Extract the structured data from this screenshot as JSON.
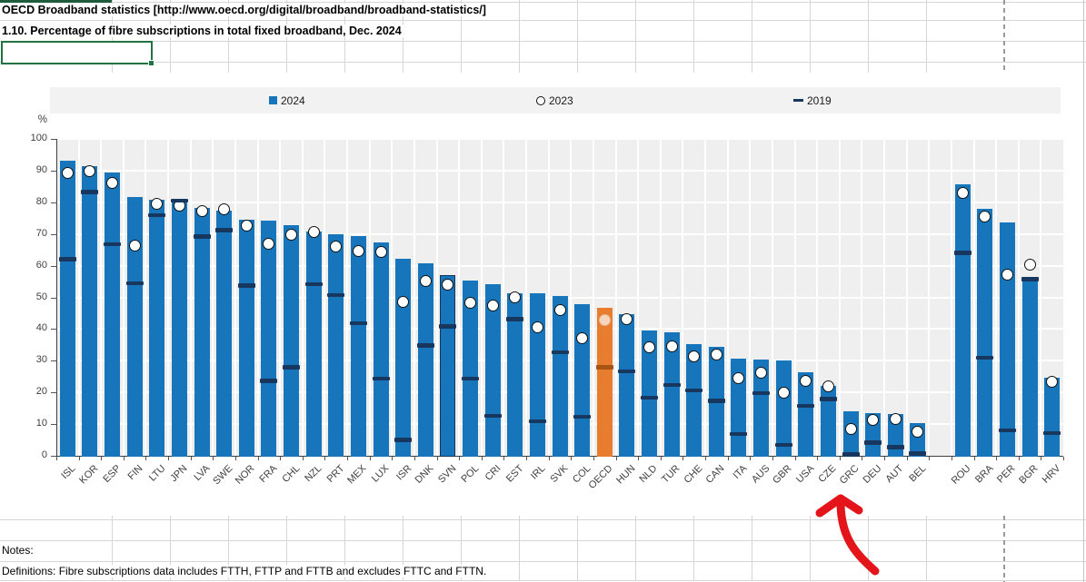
{
  "sheet": {
    "title": "OECD Broadband statistics [http://www.oecd.org/digital/broadband/broadband-statistics/]",
    "subtitle": "1.10. Percentage of fibre subscriptions in total fixed broadband, Dec. 2024",
    "notes_label": "Notes:",
    "definitions": "Definitions: Fibre subscriptions data includes FTTH, FTTP and FTTB and excludes FTTC and FTTN."
  },
  "legend": {
    "items": [
      {
        "label": "2024",
        "marker": "blue-square"
      },
      {
        "label": "2023",
        "marker": "white-circle"
      },
      {
        "label": "2019",
        "marker": "navy-dash"
      }
    ]
  },
  "colors": {
    "bar_blue": "#1776bb",
    "bar_orange": "#e87d2f",
    "dash_navy": "#17375e",
    "dash_orange_dark": "#a85415",
    "circle_fill": "#ffffff",
    "circle_stroke": "#111111",
    "plot_bg": "#efefef",
    "legend_bg": "#f2f2f2",
    "selection_green": "#217346",
    "arrow_red": "#e3151b",
    "gridline_gray": "#d6d6d6",
    "axis_gray": "#3f3f3f"
  },
  "chart_data": {
    "type": "bar",
    "title": "1.10. Percentage of fibre subscriptions in total fixed broadband, Dec. 2024",
    "unit_label": "%",
    "ylim": [
      0,
      100
    ],
    "yticks": [
      100,
      90,
      80,
      70,
      60,
      50,
      40,
      30,
      20,
      10,
      0
    ],
    "legend_position": "top",
    "grid": true,
    "categories": [
      "ISL",
      "KOR",
      "ESP",
      "FIN",
      "LTU",
      "JPN",
      "LVA",
      "SWE",
      "NOR",
      "FRA",
      "CHL",
      "NZL",
      "PRT",
      "MEX",
      "LUX",
      "ISR",
      "DNK",
      "SVN",
      "POL",
      "CRI",
      "EST",
      "IRL",
      "SVK",
      "COL",
      "OECD",
      "HUN",
      "NLD",
      "TUR",
      "CHE",
      "CAN",
      "ITA",
      "AUS",
      "GBR",
      "USA",
      "CZE",
      "GRC",
      "DEU",
      "AUT",
      "BEL",
      "ROU",
      "BRA",
      "PER",
      "BGR",
      "HRV"
    ],
    "series": [
      {
        "name": "2024",
        "style": "bar",
        "values": [
          93.1,
          91.4,
          89.4,
          81.6,
          80.8,
          80.0,
          78.2,
          77.5,
          74.5,
          74.2,
          72.7,
          70.8,
          70.0,
          69.3,
          67.2,
          62.2,
          60.7,
          56.9,
          55.2,
          54.1,
          51.4,
          51.2,
          50.3,
          47.9,
          46.8,
          44.6,
          39.4,
          39.0,
          35.2,
          34.3,
          30.6,
          30.4,
          30.0,
          26.3,
          22.2,
          14.0,
          13.5,
          13.2,
          10.3,
          85.6,
          77.9,
          73.5,
          56.0,
          24.6
        ]
      },
      {
        "name": "2023",
        "style": "circle",
        "values": [
          89.2,
          89.9,
          86.2,
          66.2,
          79.6,
          78.9,
          77.3,
          77.9,
          72.7,
          66.9,
          69.9,
          70.5,
          66.1,
          64.7,
          64.4,
          48.5,
          55.3,
          54.0,
          48.4,
          47.3,
          49.9,
          40.6,
          46.1,
          37.0,
          42.7,
          43.2,
          34.1,
          34.6,
          31.5,
          32.0,
          24.4,
          26.2,
          19.8,
          23.6,
          22.0,
          8.5,
          11.4,
          11.7,
          7.6,
          83.0,
          75.5,
          57.1,
          60.3,
          23.3
        ]
      },
      {
        "name": "2019",
        "style": "dash",
        "values": [
          62.1,
          83.2,
          66.8,
          54.5,
          75.9,
          80.5,
          69.2,
          71.2,
          53.8,
          23.7,
          27.9,
          54.1,
          50.7,
          41.9,
          24.4,
          5.0,
          34.8,
          40.8,
          24.4,
          12.6,
          43.1,
          10.9,
          32.7,
          12.4,
          28.0,
          26.7,
          18.4,
          22.4,
          20.7,
          17.4,
          6.9,
          19.8,
          3.5,
          15.8,
          17.9,
          0.5,
          4.2,
          2.8,
          0.7,
          64.1,
          31.0,
          8.0,
          55.7,
          7.2
        ]
      }
    ],
    "highlight_bar": "OECD",
    "outlined_bar": "SVN",
    "separator_after": "BEL",
    "annotation": {
      "type": "hand-drawn-arrow",
      "color": "#e3151b",
      "points_at": "GRC"
    }
  }
}
